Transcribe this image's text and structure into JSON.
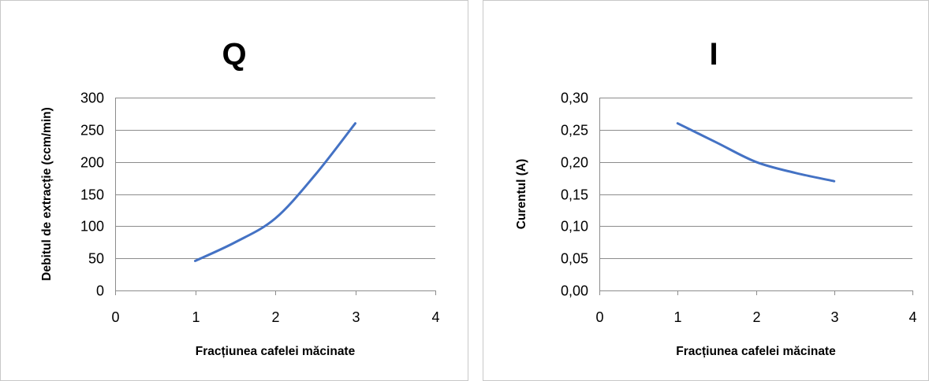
{
  "chart_data": [
    {
      "type": "line",
      "title": "Q",
      "xlabel": "Fracțiunea cafelei măcinate",
      "ylabel": "Debitul de extracție (ccm/min)",
      "xlim": [
        0,
        4
      ],
      "ylim": [
        0,
        300
      ],
      "x_ticks": [
        "0",
        "1",
        "2",
        "3",
        "4"
      ],
      "y_ticks": [
        "0",
        "50",
        "100",
        "150",
        "200",
        "250",
        "300"
      ],
      "grid": "horizontal",
      "legend": "none",
      "color": "#4472c4",
      "series": [
        {
          "x": [
            1,
            1.5,
            2,
            2.5,
            3
          ],
          "values": [
            46,
            75,
            112,
            180,
            260
          ]
        }
      ]
    },
    {
      "type": "line",
      "title": "I",
      "xlabel": "Fracțiunea cafelei măcinate",
      "ylabel": "Curentul (A)",
      "xlim": [
        0,
        4
      ],
      "ylim": [
        0,
        0.3
      ],
      "x_ticks": [
        "0",
        "1",
        "2",
        "3",
        "4"
      ],
      "y_ticks": [
        "0,00",
        "0,05",
        "0,10",
        "0,15",
        "0,20",
        "0,25",
        "0,30"
      ],
      "grid": "horizontal",
      "legend": "none",
      "color": "#4472c4",
      "series": [
        {
          "x": [
            1,
            1.5,
            2,
            2.5,
            3
          ],
          "values": [
            0.26,
            0.23,
            0.2,
            0.183,
            0.17
          ]
        }
      ]
    }
  ]
}
